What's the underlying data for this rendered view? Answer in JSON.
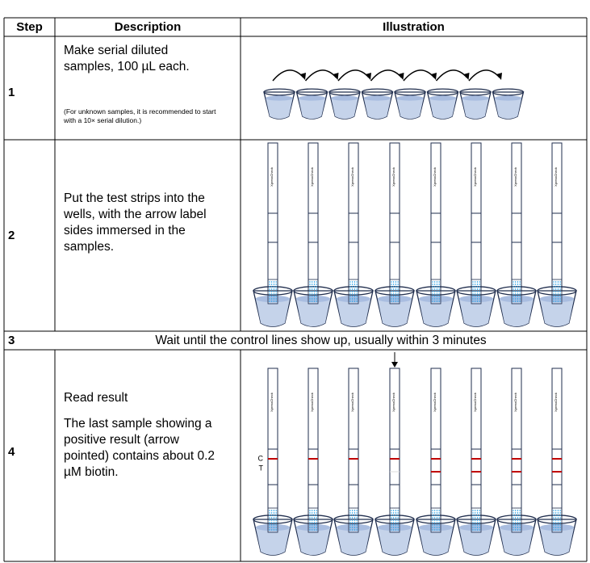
{
  "table": {
    "header": [
      "Step",
      "Description",
      "Illustration"
    ],
    "rows": [
      {
        "step": "1",
        "description": "Make serial diluted samples, 100 µL each.",
        "note": "(For unknown samples, it is recommended to start with a 10× serial dilution.)"
      },
      {
        "step": "2",
        "description": "Put the test strips into the wells, with the arrow label sides immersed in the samples."
      },
      {
        "step": "3",
        "description": "Wait until the control lines show up, usually within 3 minutes"
      },
      {
        "step": "4",
        "description": "Read result",
        "note": "The last sample showing a positive result (arrow pointed) contains about 0.2 µM biotin."
      }
    ]
  },
  "strip_label": "XpressCheck",
  "line_labels": [
    "C",
    "T"
  ]
}
